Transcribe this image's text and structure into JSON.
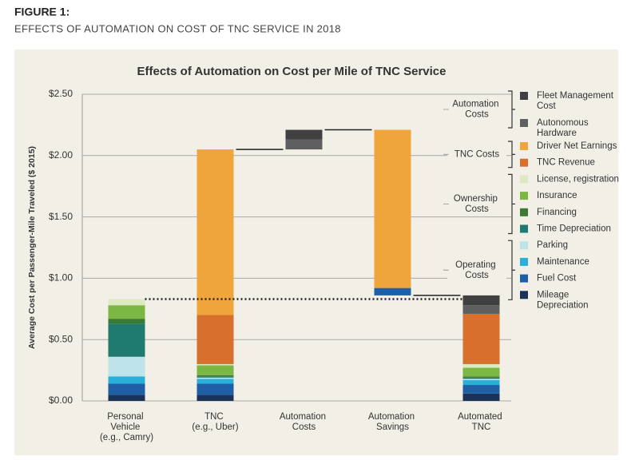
{
  "header": {
    "figure": "FIGURE 1:",
    "title": "EFFECTS OF AUTOMATION ON COST OF TNC SERVICE IN 2018"
  },
  "chart_data": {
    "type": "waterfall",
    "title": "Effects of Automation on Cost per Mile of TNC Service",
    "y_label": "Average Cost per Passenger-Mile Traveled ($ 2015)",
    "categories": [
      "Personal Vehicle (e.g., Camry)",
      "TNC (e.g., Uber)",
      "Automation Costs",
      "Automation Savings",
      "Automated TNC"
    ],
    "measure": [
      "absolute",
      "absolute",
      "relative",
      "relative",
      "absolute"
    ],
    "ylim": [
      0,
      2.5
    ],
    "yticks": [
      {
        "value": 0,
        "label": "$0.00"
      },
      {
        "value": 0.5,
        "label": "$0.50"
      },
      {
        "value": 1,
        "label": "$1.00"
      },
      {
        "value": 1.5,
        "label": "$1.50"
      },
      {
        "value": 2,
        "label": "$2.00"
      },
      {
        "value": 2.5,
        "label": "$2.50"
      }
    ],
    "grid": true,
    "series": [
      {
        "name": "Mileage Depreciation",
        "group": "Operating Costs",
        "color": "#1b3258",
        "values": [
          0.05,
          0.05,
          null,
          null,
          0.06
        ]
      },
      {
        "name": "Fuel Cost",
        "group": "Operating Costs",
        "color": "#1f5fa6",
        "values": [
          0.09,
          0.09,
          null,
          -0.06,
          0.07
        ]
      },
      {
        "name": "Maintenance",
        "group": "Operating Costs",
        "color": "#2ab0d8",
        "values": [
          0.06,
          0.04,
          null,
          null,
          0.04
        ]
      },
      {
        "name": "Parking",
        "group": "Operating Costs",
        "color": "#bfe3ea",
        "values": [
          0.16,
          0.01,
          null,
          null,
          0.01
        ]
      },
      {
        "name": "Time Depreciation",
        "group": "Ownership Costs",
        "color": "#1f7a70",
        "values": [
          0.27,
          0.01,
          null,
          null,
          0.01
        ]
      },
      {
        "name": "Financing",
        "group": "Ownership Costs",
        "color": "#3b7a35",
        "values": [
          0.04,
          0.01,
          null,
          null,
          0.01
        ]
      },
      {
        "name": "Insurance",
        "group": "Ownership Costs",
        "color": "#7ab743",
        "values": [
          0.11,
          0.08,
          null,
          null,
          0.07
        ]
      },
      {
        "name": "License, registration",
        "group": "Ownership Costs",
        "color": "#dde9c0",
        "values": [
          0.05,
          0.01,
          null,
          null,
          0.03
        ]
      },
      {
        "name": "TNC Revenue",
        "group": "TNC Costs",
        "color": "#d86f2d",
        "values": [
          null,
          0.4,
          null,
          null,
          0.41
        ]
      },
      {
        "name": "Driver Net Earnings",
        "group": "TNC Costs",
        "color": "#f0a43c",
        "values": [
          null,
          1.35,
          null,
          -1.29,
          null
        ]
      },
      {
        "name": "Autonomous Hardware",
        "group": "Automation Costs",
        "color": "#5f5f5f",
        "values": [
          null,
          null,
          0.08,
          null,
          0.07
        ]
      },
      {
        "name": "Fleet Management Cost",
        "group": "Automation Costs",
        "color": "#404040",
        "values": [
          null,
          null,
          0.08,
          null,
          0.08
        ]
      }
    ]
  }
}
